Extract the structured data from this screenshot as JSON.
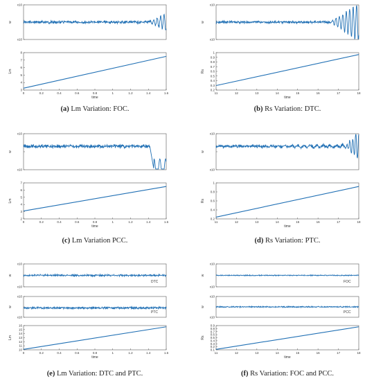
{
  "figure": {
    "panels": [
      {
        "id": "a",
        "caption_letter": "(a)",
        "caption_text": " Lm Variation: FOC.",
        "subplots": [
          {
            "kind": "speed",
            "ylabel": "w",
            "yticks": [
              "x10",
              "",
              "x10"
            ],
            "x": [
              0,
              1.6
            ],
            "xticks": [],
            "series": [
              {
                "name": "",
                "type": "noise_with_tail",
                "level": 0.5,
                "amp": 0.06,
                "tail_start": 0.88,
                "tail_amp": 0.25
              }
            ]
          },
          {
            "kind": "param",
            "ylabel": "Lm",
            "xlabel": "time",
            "xlim": [
              0,
              1.6
            ],
            "xticks": [
              "0",
              "0.2",
              "0.4",
              "0.6",
              "0.8",
              "1",
              "1.2",
              "1.4",
              "1.6"
            ],
            "yticks": [
              "3",
              "4",
              "5",
              "6",
              "7",
              "8"
            ],
            "line": {
              "x0": 0,
              "x1": 1.6,
              "y0_frac": 0.05,
              "y1_frac": 0.9
            }
          }
        ]
      },
      {
        "id": "b",
        "caption_letter": "(b)",
        "caption_text": " Rs Variation: DTC.",
        "subplots": [
          {
            "kind": "speed",
            "ylabel": "w",
            "yticks": [
              "x10",
              "",
              "x10"
            ],
            "xticks": [],
            "series": [
              {
                "name": "",
                "type": "noise_with_tail",
                "level": 0.5,
                "amp": 0.05,
                "tail_start": 0.8,
                "tail_amp": 0.55
              }
            ]
          },
          {
            "kind": "param",
            "ylabel": "Rs",
            "xlabel": "time",
            "xlim": [
              11,
              18
            ],
            "xticks": [
              "11",
              "12",
              "13",
              "14",
              "15",
              "16",
              "17",
              "18"
            ],
            "yticks": [
              "0.2",
              "0.3",
              "0.4",
              "0.5",
              "0.6",
              "0.7",
              "0.8",
              "0.9",
              "1"
            ],
            "line": {
              "x0": 11,
              "x1": 18,
              "y0_frac": 0.12,
              "y1_frac": 0.95
            }
          }
        ]
      },
      {
        "id": "c",
        "caption_letter": "(c)",
        "caption_text": " Lm Variation PCC.",
        "subplots": [
          {
            "kind": "speed",
            "ylabel": "w",
            "yticks": [
              "x10",
              "",
              "x10"
            ],
            "xticks": [],
            "series": [
              {
                "name": "",
                "type": "drop_tail",
                "level": 0.35,
                "amp": 0.07,
                "tail_start": 0.885,
                "tail_amp": 0.6
              }
            ]
          },
          {
            "kind": "param",
            "ylabel": "Lm",
            "xlabel": "time",
            "xlim": [
              0,
              1.6
            ],
            "xticks": [
              "0",
              "0.2",
              "0.4",
              "0.6",
              "0.8",
              "1",
              "1.2",
              "1.4",
              "1.6"
            ],
            "yticks": [
              "2",
              "3",
              "4",
              "5",
              "6",
              "7"
            ],
            "line": {
              "x0": 0,
              "x1": 1.6,
              "y0_frac": 0.22,
              "y1_frac": 0.9
            }
          }
        ]
      },
      {
        "id": "d",
        "caption_letter": "(d)",
        "caption_text": " Rs Variation: PTC.",
        "subplots": [
          {
            "kind": "speed",
            "ylabel": "w",
            "yticks": [
              "x10",
              "",
              "x10"
            ],
            "xticks": [],
            "series": [
              {
                "name": "",
                "type": "growing_osc",
                "level": 0.35,
                "amp": 0.06,
                "tail_start": 0.9,
                "tail_amp": 0.4
              }
            ]
          },
          {
            "kind": "param",
            "ylabel": "Rs",
            "xlabel": "time",
            "xlim": [
              11,
              18
            ],
            "xticks": [
              "11",
              "12",
              "13",
              "14",
              "15",
              "16",
              "17",
              "18"
            ],
            "yticks": [
              "0.2",
              "0.4",
              "0.6",
              "0.8",
              "1"
            ],
            "line": {
              "x0": 11,
              "x1": 18,
              "y0_frac": 0.05,
              "y1_frac": 0.9
            }
          }
        ]
      },
      {
        "id": "e",
        "caption_letter": "(e)",
        "caption_text": " Lm Variation: DTC and PTC.",
        "subplots": [
          {
            "kind": "speed",
            "ylabel": "w",
            "legend": "DTC",
            "yticks": [
              "x10",
              "",
              "x10"
            ],
            "xticks": [],
            "series": [
              {
                "name": "",
                "type": "noise",
                "level": 0.5,
                "amp": 0.06
              }
            ]
          },
          {
            "kind": "speed",
            "ylabel": "w",
            "legend": "PTC",
            "yticks": [
              "x10",
              "",
              "x10"
            ],
            "xticks": [],
            "series": [
              {
                "name": "",
                "type": "noise",
                "level": 0.55,
                "amp": 0.07
              }
            ]
          },
          {
            "kind": "param",
            "ylabel": "Lm",
            "xlabel": "time",
            "xlim": [
              0,
              1.6
            ],
            "xticks": [
              "0",
              "0.2",
              "0.4",
              "0.6",
              "0.8",
              "1",
              "1.2",
              "1.4",
              "1.6"
            ],
            "yticks": [
              "10",
              "11",
              "12",
              "13",
              "14",
              "15",
              "16"
            ],
            "line": {
              "x0": 0,
              "x1": 1.6,
              "y0_frac": 0.02,
              "y1_frac": 0.95
            }
          }
        ]
      },
      {
        "id": "f",
        "caption_letter": "(f)",
        "caption_text": " Rs Variation: FOC and PCC.",
        "subplots": [
          {
            "kind": "speed",
            "ylabel": "w",
            "legend": "FOC",
            "yticks": [
              "x10",
              "",
              "x10"
            ],
            "xticks": [],
            "series": [
              {
                "name": "",
                "type": "noise",
                "level": 0.5,
                "amp": 0.03
              }
            ]
          },
          {
            "kind": "speed",
            "ylabel": "w",
            "legend": "PCC",
            "yticks": [
              "x10",
              "",
              "x10"
            ],
            "xticks": [],
            "series": [
              {
                "name": "",
                "type": "noise",
                "level": 0.5,
                "amp": 0.04
              }
            ]
          },
          {
            "kind": "param",
            "ylabel": "Rs",
            "xlabel": "time",
            "xlim": [
              11,
              18
            ],
            "xticks": [
              "11",
              "12",
              "13",
              "14",
              "15",
              "16",
              "17",
              "18"
            ],
            "yticks": [
              "0.1",
              "0.2",
              "0.3",
              "0.4",
              "0.5",
              "0.6",
              "0.7",
              "0.8",
              "0.9"
            ],
            "line": {
              "x0": 11,
              "x1": 18,
              "y0_frac": 0.02,
              "y1_frac": 0.95
            }
          }
        ]
      }
    ]
  },
  "chart_data": [
    {
      "type": "line",
      "title": "",
      "caption": "(a) Lm Variation: FOC.",
      "xlabel": "time",
      "ylabel": "Lm",
      "x": [
        0,
        1.6
      ],
      "series": [
        {
          "name": "",
          "values": [
            3.2,
            7.6
          ]
        }
      ]
    },
    {
      "type": "line",
      "title": "",
      "caption": "(b) Rs Variation: DTC.",
      "xlabel": "time",
      "ylabel": "Rs",
      "x": [
        11,
        18
      ],
      "series": [
        {
          "name": "",
          "values": [
            0.15,
            0.95
          ]
        }
      ]
    },
    {
      "type": "line",
      "title": "",
      "caption": "(c) Lm Variation PCC.",
      "xlabel": "time",
      "ylabel": "Lm",
      "x": [
        0,
        1.6
      ],
      "series": [
        {
          "name": "",
          "values": [
            3.3,
            6.6
          ]
        }
      ]
    },
    {
      "type": "line",
      "title": "",
      "caption": "(d) Rs Variation: PTC.",
      "xlabel": "time",
      "ylabel": "Rs",
      "x": [
        11,
        18
      ],
      "series": [
        {
          "name": "",
          "values": [
            0.15,
            0.95
          ]
        }
      ]
    },
    {
      "type": "line",
      "title": "",
      "caption": "(e) Lm Variation: DTC and PTC.",
      "xlabel": "time",
      "ylabel": "Lm",
      "x": [
        0,
        1.6
      ],
      "series": [
        {
          "name": "",
          "values": [
            10.1,
            15.8
          ]
        }
      ]
    },
    {
      "type": "line",
      "title": "",
      "caption": "(f) Rs Variation: FOC and PCC.",
      "xlabel": "time",
      "ylabel": "Rs",
      "x": [
        11,
        18
      ],
      "series": [
        {
          "name": "",
          "values": [
            0.1,
            0.88
          ]
        }
      ]
    }
  ],
  "style": {
    "line_color": "#1f6fb4",
    "axis_color": "#555555",
    "caption_color": "#222222"
  }
}
